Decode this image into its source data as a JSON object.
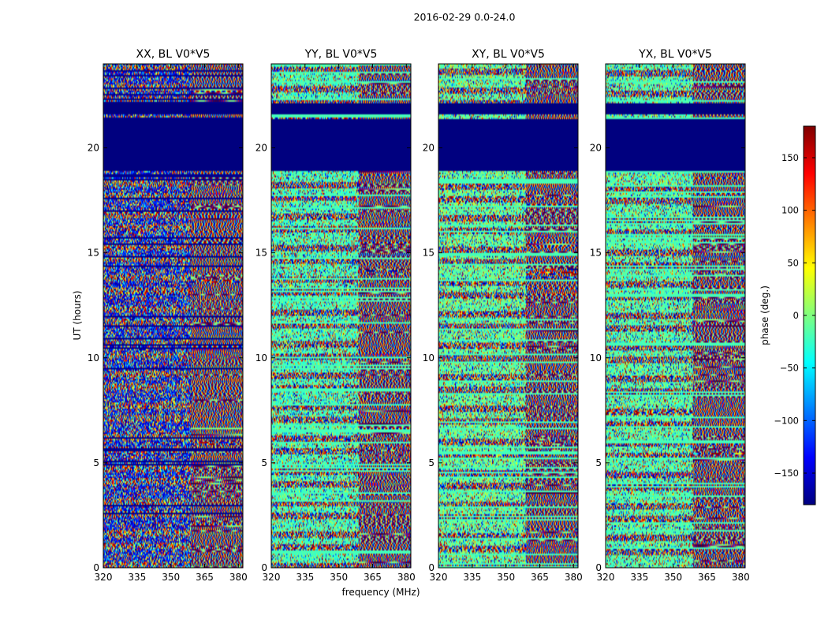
{
  "chart_data": {
    "type": "heatmap",
    "title": "2016-02-29 0.0-24.0",
    "xlabel": "frequency (MHz)",
    "ylabel": "UT (hours)",
    "xlim": [
      320,
      382
    ],
    "ylim": [
      0,
      24
    ],
    "xticks": [
      "320",
      "335",
      "350",
      "365",
      "380"
    ],
    "yticks": [
      "0",
      "5",
      "10",
      "15",
      "20"
    ],
    "panels": [
      {
        "title": "XX, BL V0*V5",
        "polarization": "XX"
      },
      {
        "title": "YY, BL V0*V5",
        "polarization": "YY"
      },
      {
        "title": "XY, BL V0*V5",
        "polarization": "XY"
      },
      {
        "title": "YX, BL V0*V5",
        "polarization": "YX"
      }
    ],
    "flagged_hours": [
      [
        18.9,
        21.4
      ],
      [
        21.6,
        22.1
      ]
    ],
    "colorbar": {
      "label": "phase (deg.)",
      "range": [
        -180,
        180
      ],
      "ticks": [
        "150",
        "100",
        "50",
        "0",
        "−50",
        "−100",
        "−150"
      ],
      "colormap": [
        "#00007f",
        "#0000ff",
        "#007fff",
        "#00ffff",
        "#7fff7f",
        "#ffff00",
        "#ff7f00",
        "#ff0000",
        "#7f0000"
      ]
    }
  }
}
